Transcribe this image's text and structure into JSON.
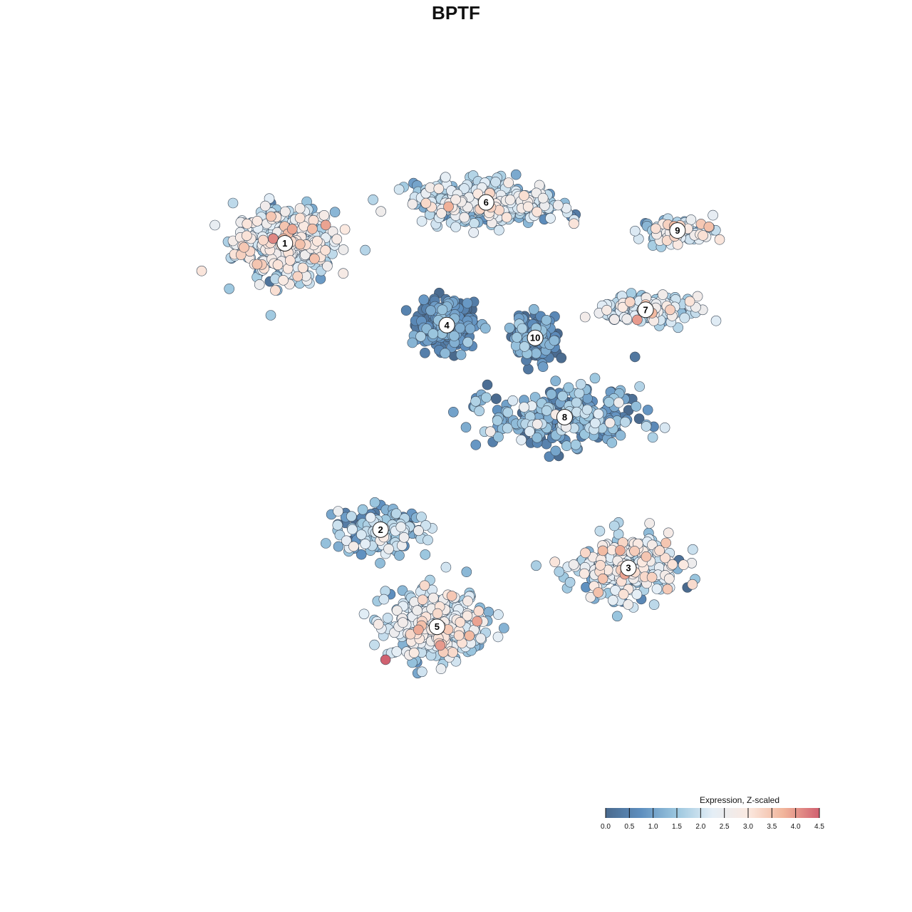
{
  "chart_data": {
    "type": "scatter",
    "title": "BPTF",
    "xlabel": "",
    "ylabel": "",
    "grid": false,
    "legend_position": "bottom-right",
    "colorbar": {
      "title": "Expression, Z-scaled",
      "range": [
        0.0,
        4.5
      ],
      "ticks": [
        "0.0",
        "0.5",
        "1.0",
        "1.5",
        "2.0",
        "2.5",
        "3.0",
        "3.5",
        "4.0",
        "4.5"
      ],
      "colors": [
        "#4a6a8e",
        "#5e8fbf",
        "#9cc7df",
        "#e4eef6",
        "#fbe9e0",
        "#f1b49a",
        "#d06070"
      ]
    },
    "clusters": [
      {
        "label": "1",
        "x": -7.2,
        "y": 7.0,
        "n": 420,
        "spread": [
          2.0,
          1.4
        ],
        "mean_expr": 2.1,
        "sd_expr": 0.65
      },
      {
        "label": "2",
        "x": -3.3,
        "y": -4.2,
        "n": 170,
        "spread": [
          1.8,
          0.9
        ],
        "mean_expr": 1.2,
        "sd_expr": 0.7
      },
      {
        "label": "3",
        "x": 6.8,
        "y": -5.7,
        "n": 300,
        "spread": [
          2.0,
          1.2
        ],
        "mean_expr": 2.0,
        "sd_expr": 0.7
      },
      {
        "label": "4",
        "x": -0.6,
        "y": 3.8,
        "n": 260,
        "spread": [
          1.1,
          0.9
        ],
        "mean_expr": 0.5,
        "sd_expr": 0.45
      },
      {
        "label": "5",
        "x": -1.0,
        "y": -8.0,
        "n": 380,
        "spread": [
          2.0,
          1.3
        ],
        "mean_expr": 2.0,
        "sd_expr": 0.7
      },
      {
        "label": "6",
        "x": 1.0,
        "y": 8.6,
        "n": 380,
        "spread": [
          3.0,
          0.8
        ],
        "mean_expr": 1.8,
        "sd_expr": 0.6
      },
      {
        "label": "7",
        "x": 7.5,
        "y": 4.4,
        "n": 160,
        "spread": [
          1.8,
          0.5
        ],
        "mean_expr": 1.9,
        "sd_expr": 0.7
      },
      {
        "label": "8",
        "x": 4.2,
        "y": 0.2,
        "n": 320,
        "spread": [
          3.0,
          1.1
        ],
        "mean_expr": 0.9,
        "sd_expr": 0.7
      },
      {
        "label": "9",
        "x": 8.8,
        "y": 7.5,
        "n": 90,
        "spread": [
          1.5,
          0.5
        ],
        "mean_expr": 2.1,
        "sd_expr": 0.7
      },
      {
        "label": "10",
        "x": 3.0,
        "y": 3.3,
        "n": 140,
        "spread": [
          0.9,
          0.9
        ],
        "mean_expr": 0.6,
        "sd_expr": 0.5
      }
    ],
    "xlim": [
      -13,
      14
    ],
    "ylim": [
      -14,
      11.5
    ]
  }
}
